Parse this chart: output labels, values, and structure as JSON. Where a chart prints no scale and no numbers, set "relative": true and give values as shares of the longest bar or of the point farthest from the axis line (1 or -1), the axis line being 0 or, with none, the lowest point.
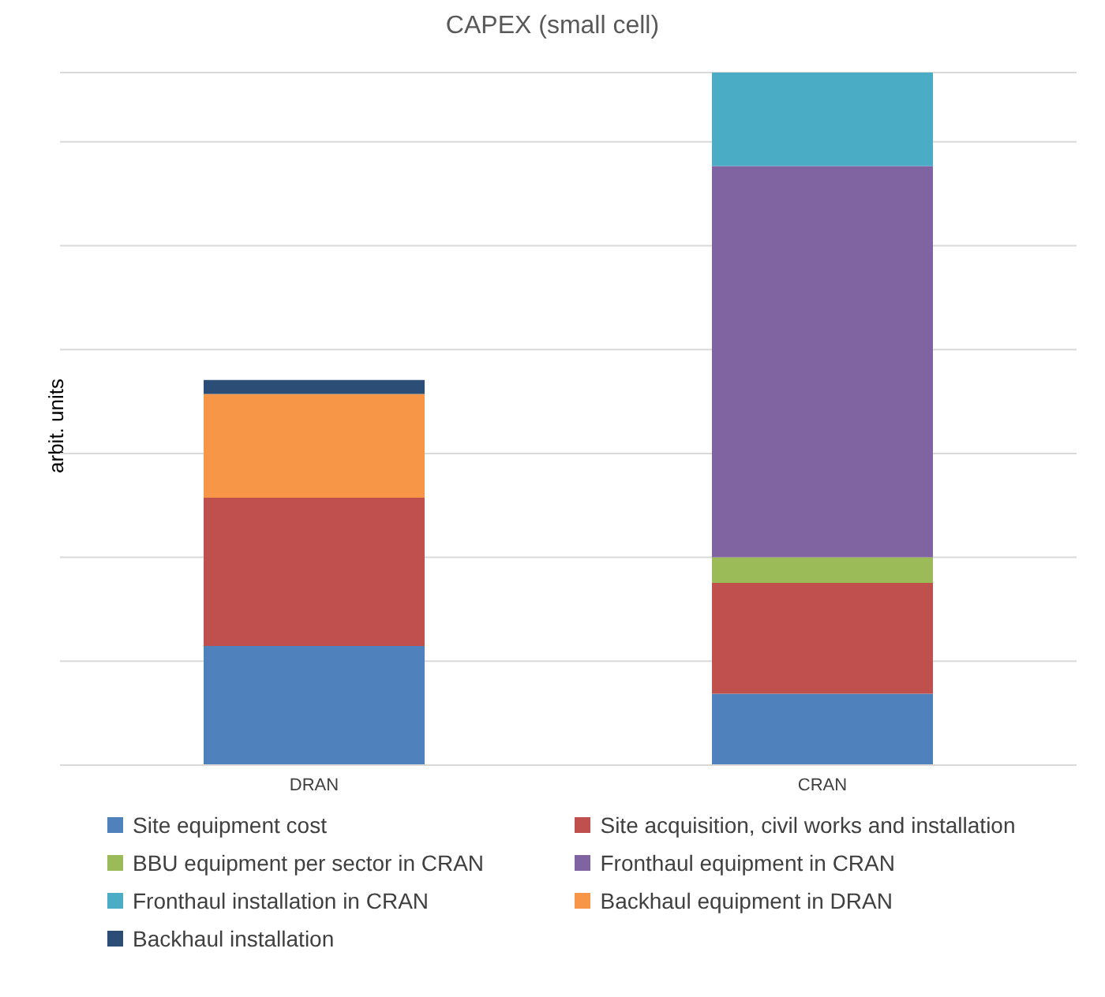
{
  "chart_data": {
    "type": "bar",
    "title": "CAPEX (small cell)",
    "ylabel": "arbit. units",
    "categories": [
      "DRAN",
      "CRAN"
    ],
    "stacked": true,
    "relative": true,
    "grid": "y",
    "legend": "bottom",
    "series": [
      {
        "name": "Site equipment cost",
        "color": "#4f81bd",
        "values": [
          0.172,
          0.103
        ]
      },
      {
        "name": "Site acquisition, civil works and installation",
        "color": "#c0504d",
        "values": [
          0.214,
          0.16
        ]
      },
      {
        "name": "BBU equipment per sector in CRAN",
        "color": "#9bbb59",
        "values": [
          null,
          0.037
        ]
      },
      {
        "name": "Fronthaul equipment in CRAN",
        "color": "#8064a2",
        "values": [
          null,
          0.565
        ]
      },
      {
        "name": "Fronthaul installation in CRAN",
        "color": "#4bacc6",
        "values": [
          null,
          0.135
        ]
      },
      {
        "name": "Backhaul equipment in DRAN",
        "color": "#f79646",
        "values": [
          0.15,
          null
        ]
      },
      {
        "name": "Backhaul installation",
        "color": "#2c4d75",
        "values": [
          0.02,
          null
        ]
      }
    ]
  }
}
